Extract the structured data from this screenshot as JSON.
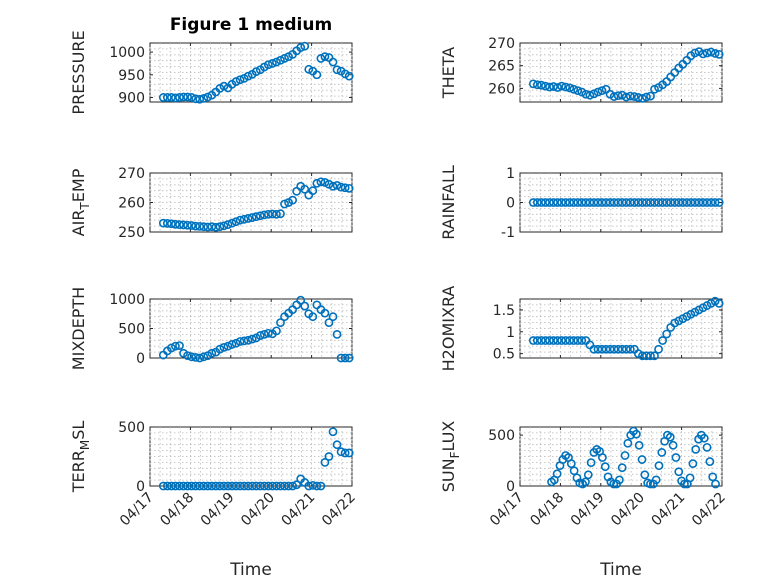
{
  "figure": {
    "title": "Figure 1 medium",
    "xlabel": "Time",
    "marker_color": "#0072BD"
  },
  "chart_data": [
    {
      "type": "scatter",
      "ylabel": "PRESSURE",
      "xlim": [
        "04/17",
        "04/22"
      ],
      "xticks": [
        "04/17",
        "04/18",
        "04/19",
        "04/20",
        "04/21",
        "04/22"
      ],
      "ylim": [
        890,
        1020
      ],
      "yticks": [
        900,
        950,
        1000
      ],
      "series": [
        {
          "x": [
            17.33,
            17.43,
            17.53,
            17.63,
            17.73,
            17.83,
            17.93,
            18.03,
            18.13,
            18.23,
            18.33,
            18.43,
            18.53,
            18.63,
            18.73,
            18.83,
            18.93,
            19.03,
            19.13,
            19.23,
            19.33,
            19.43,
            19.53,
            19.63,
            19.73,
            19.83,
            19.93,
            20.03,
            20.13,
            20.23,
            20.33,
            20.43,
            20.53,
            20.63,
            20.73,
            20.83,
            20.93,
            21.03,
            21.13,
            21.23,
            21.33,
            21.43,
            21.53,
            21.63,
            21.73,
            21.83,
            21.93
          ],
          "y": [
            900,
            900,
            900,
            899,
            900,
            901,
            901,
            900,
            897,
            896,
            898,
            901,
            905,
            912,
            920,
            925,
            921,
            929,
            935,
            939,
            942,
            947,
            951,
            957,
            961,
            967,
            972,
            975,
            978,
            982,
            986,
            990,
            995,
            1003,
            1010,
            1013,
            962,
            958,
            950,
            986,
            990,
            988,
            978,
            961,
            958,
            952,
            947
          ]
        }
      ]
    },
    {
      "type": "scatter",
      "ylabel": "THETA",
      "xlim": [
        "04/17",
        "04/22"
      ],
      "xticks": [
        "04/17",
        "04/18",
        "04/19",
        "04/20",
        "04/21",
        "04/22"
      ],
      "ylim": [
        257,
        270
      ],
      "yticks": [
        260,
        265,
        270
      ],
      "series": [
        {
          "x": [
            17.33,
            17.43,
            17.53,
            17.63,
            17.73,
            17.83,
            17.93,
            18.03,
            18.13,
            18.23,
            18.33,
            18.43,
            18.53,
            18.63,
            18.73,
            18.83,
            18.93,
            19.03,
            19.13,
            19.23,
            19.33,
            19.43,
            19.53,
            19.63,
            19.73,
            19.83,
            19.93,
            20.03,
            20.13,
            20.23,
            20.33,
            20.43,
            20.53,
            20.63,
            20.73,
            20.83,
            20.93,
            21.03,
            21.13,
            21.23,
            21.33,
            21.43,
            21.53,
            21.63,
            21.73,
            21.83,
            21.93
          ],
          "y": [
            261,
            260.8,
            260.7,
            260.5,
            260.3,
            260.4,
            260.2,
            260.5,
            260.3,
            260.1,
            259.8,
            259.5,
            259.2,
            258.7,
            258.5,
            258.8,
            259.2,
            259.5,
            259.8,
            258.7,
            258.2,
            258.4,
            258.5,
            258.1,
            258.3,
            258.2,
            258,
            257.8,
            258.1,
            258.3,
            259.8,
            260.2,
            260.8,
            261.5,
            262.5,
            263.5,
            264.5,
            265.3,
            266.2,
            267.2,
            267.8,
            268.1,
            267.6,
            267.8,
            268,
            267.7,
            267.5
          ]
        }
      ]
    },
    {
      "type": "scatter",
      "ylabel": "AIR_TEMP",
      "ylabel_display": [
        "AIR",
        "T",
        "EMP"
      ],
      "xlim": [
        "04/17",
        "04/22"
      ],
      "xticks": [
        "04/17",
        "04/18",
        "04/19",
        "04/20",
        "04/21",
        "04/22"
      ],
      "ylim": [
        250,
        270
      ],
      "yticks": [
        250,
        260,
        270
      ],
      "series": [
        {
          "x": [
            17.33,
            17.43,
            17.53,
            17.63,
            17.73,
            17.83,
            17.93,
            18.03,
            18.13,
            18.23,
            18.33,
            18.43,
            18.53,
            18.63,
            18.73,
            18.83,
            18.93,
            19.03,
            19.13,
            19.23,
            19.33,
            19.43,
            19.53,
            19.63,
            19.73,
            19.83,
            19.93,
            20.03,
            20.13,
            20.23,
            20.33,
            20.43,
            20.53,
            20.63,
            20.73,
            20.83,
            20.93,
            21.03,
            21.13,
            21.23,
            21.33,
            21.43,
            21.53,
            21.63,
            21.73,
            21.83,
            21.93
          ],
          "y": [
            253,
            252.9,
            252.8,
            252.6,
            252.5,
            252.4,
            252.3,
            252.2,
            252,
            251.9,
            251.8,
            251.7,
            251.8,
            251.6,
            251.8,
            252.1,
            252.5,
            253,
            253.5,
            254,
            254.3,
            254.6,
            254.9,
            255.2,
            255.5,
            255.8,
            256,
            256.1,
            256,
            256.2,
            259.5,
            260,
            260.8,
            263.8,
            265.5,
            264.5,
            262.5,
            264,
            266.5,
            267,
            266.8,
            266.2,
            265.5,
            265.8,
            265.2,
            265,
            264.8
          ]
        }
      ]
    },
    {
      "type": "scatter",
      "ylabel": "RAINFALL",
      "xlim": [
        "04/17",
        "04/22"
      ],
      "xticks": [
        "04/17",
        "04/18",
        "04/19",
        "04/20",
        "04/21",
        "04/22"
      ],
      "ylim": [
        -1,
        1
      ],
      "yticks": [
        -1,
        0,
        1
      ],
      "series": [
        {
          "x": [
            17.33,
            17.43,
            17.53,
            17.63,
            17.73,
            17.83,
            17.93,
            18.03,
            18.13,
            18.23,
            18.33,
            18.43,
            18.53,
            18.63,
            18.73,
            18.83,
            18.93,
            19.03,
            19.13,
            19.23,
            19.33,
            19.43,
            19.53,
            19.63,
            19.73,
            19.83,
            19.93,
            20.03,
            20.13,
            20.23,
            20.33,
            20.43,
            20.53,
            20.63,
            20.73,
            20.83,
            20.93,
            21.03,
            21.13,
            21.23,
            21.33,
            21.43,
            21.53,
            21.63,
            21.73,
            21.83,
            21.93
          ],
          "y": [
            0,
            0,
            0,
            0,
            0,
            0,
            0,
            0,
            0,
            0,
            0,
            0,
            0,
            0,
            0,
            0,
            0,
            0,
            0,
            0,
            0,
            0,
            0,
            0,
            0,
            0,
            0,
            0,
            0,
            0,
            0,
            0,
            0,
            0,
            0,
            0,
            0,
            0,
            0,
            0,
            0,
            0,
            0,
            0,
            0,
            0,
            0
          ]
        }
      ]
    },
    {
      "type": "scatter",
      "ylabel": "MIXDEPTH",
      "xlim": [
        "04/17",
        "04/22"
      ],
      "xticks": [
        "04/17",
        "04/18",
        "04/19",
        "04/20",
        "04/21",
        "04/22"
      ],
      "ylim": [
        0,
        1000
      ],
      "yticks": [
        0,
        500,
        1000
      ],
      "series": [
        {
          "x": [
            17.33,
            17.43,
            17.53,
            17.63,
            17.73,
            17.83,
            17.93,
            18.03,
            18.13,
            18.23,
            18.33,
            18.43,
            18.53,
            18.63,
            18.73,
            18.83,
            18.93,
            19.03,
            19.13,
            19.23,
            19.33,
            19.43,
            19.53,
            19.63,
            19.73,
            19.83,
            19.93,
            20.03,
            20.13,
            20.23,
            20.33,
            20.43,
            20.53,
            20.63,
            20.73,
            20.83,
            20.93,
            21.03,
            21.13,
            21.23,
            21.33,
            21.43,
            21.53,
            21.63,
            21.73,
            21.83,
            21.93
          ],
          "y": [
            50,
            120,
            170,
            200,
            210,
            80,
            40,
            20,
            10,
            0,
            20,
            40,
            80,
            100,
            150,
            180,
            200,
            230,
            250,
            280,
            290,
            300,
            320,
            340,
            380,
            400,
            420,
            410,
            460,
            600,
            700,
            760,
            820,
            900,
            980,
            880,
            750,
            700,
            900,
            820,
            760,
            600,
            700,
            400,
            0,
            0,
            0
          ]
        }
      ]
    },
    {
      "type": "scatter",
      "ylabel": "H2OMIXRA",
      "xlim": [
        "04/17",
        "04/22"
      ],
      "xticks": [
        "04/17",
        "04/18",
        "04/19",
        "04/20",
        "04/21",
        "04/22"
      ],
      "ylim": [
        0.4,
        1.75
      ],
      "yticks": [
        0.5,
        1,
        1.5
      ],
      "series": [
        {
          "x": [
            17.33,
            17.43,
            17.53,
            17.63,
            17.73,
            17.83,
            17.93,
            18.03,
            18.13,
            18.23,
            18.33,
            18.43,
            18.53,
            18.63,
            18.73,
            18.83,
            18.93,
            19.03,
            19.13,
            19.23,
            19.33,
            19.43,
            19.53,
            19.63,
            19.73,
            19.83,
            19.93,
            20.03,
            20.13,
            20.23,
            20.33,
            20.43,
            20.53,
            20.63,
            20.73,
            20.83,
            20.93,
            21.03,
            21.13,
            21.23,
            21.33,
            21.43,
            21.53,
            21.63,
            21.73,
            21.83,
            21.93
          ],
          "y": [
            0.8,
            0.8,
            0.8,
            0.8,
            0.8,
            0.8,
            0.8,
            0.8,
            0.8,
            0.8,
            0.8,
            0.8,
            0.8,
            0.8,
            0.7,
            0.6,
            0.6,
            0.6,
            0.6,
            0.6,
            0.6,
            0.6,
            0.6,
            0.6,
            0.6,
            0.6,
            0.5,
            0.45,
            0.45,
            0.45,
            0.45,
            0.6,
            0.8,
            0.95,
            1.1,
            1.2,
            1.25,
            1.3,
            1.35,
            1.4,
            1.45,
            1.5,
            1.55,
            1.6,
            1.65,
            1.7,
            1.65
          ]
        }
      ]
    },
    {
      "type": "scatter",
      "ylabel": "TERR_MSL",
      "ylabel_display": [
        "TERR",
        "M",
        "SL"
      ],
      "xlim": [
        "04/17",
        "04/22"
      ],
      "xticks": [
        "04/17",
        "04/18",
        "04/19",
        "04/20",
        "04/21",
        "04/22"
      ],
      "ylim": [
        0,
        500
      ],
      "yticks": [
        0,
        500
      ],
      "series": [
        {
          "x": [
            17.33,
            17.43,
            17.53,
            17.63,
            17.73,
            17.83,
            17.93,
            18.03,
            18.13,
            18.23,
            18.33,
            18.43,
            18.53,
            18.63,
            18.73,
            18.83,
            18.93,
            19.03,
            19.13,
            19.23,
            19.33,
            19.43,
            19.53,
            19.63,
            19.73,
            19.83,
            19.93,
            20.03,
            20.13,
            20.23,
            20.33,
            20.43,
            20.53,
            20.63,
            20.73,
            20.83,
            20.93,
            21.03,
            21.13,
            21.23,
            21.33,
            21.43,
            21.53,
            21.63,
            21.73,
            21.83,
            21.93
          ],
          "y": [
            0,
            0,
            0,
            0,
            0,
            0,
            0,
            0,
            0,
            0,
            0,
            0,
            0,
            0,
            0,
            0,
            0,
            0,
            0,
            0,
            0,
            0,
            0,
            0,
            0,
            0,
            0,
            0,
            0,
            0,
            0,
            0,
            0,
            10,
            60,
            30,
            0,
            5,
            0,
            0,
            200,
            250,
            460,
            350,
            290,
            280,
            280
          ]
        }
      ]
    },
    {
      "type": "scatter",
      "ylabel": "SUN_FLUX",
      "ylabel_display": [
        "SUN",
        "F",
        "LUX"
      ],
      "xlim": [
        "04/17",
        "04/22"
      ],
      "xticks": [
        "04/17",
        "04/18",
        "04/19",
        "04/20",
        "04/21",
        "04/22"
      ],
      "ylim": [
        0,
        580
      ],
      "yticks": [
        0,
        500
      ],
      "series": [
        {
          "x": [
            17.78,
            17.85,
            17.92,
            17.99,
            18.06,
            18.13,
            18.2,
            18.27,
            18.34,
            18.41,
            18.48,
            18.55,
            18.62,
            18.69,
            18.76,
            18.83,
            18.9,
            18.97,
            19.04,
            19.11,
            19.18,
            19.25,
            19.32,
            19.39,
            19.46,
            19.53,
            19.6,
            19.67,
            19.74,
            19.81,
            19.88,
            19.95,
            20.02,
            20.09,
            20.16,
            20.23,
            20.3,
            20.37,
            20.44,
            20.51,
            20.58,
            20.65,
            20.72,
            20.79,
            20.86,
            20.93,
            21.0,
            21.07,
            21.14,
            21.21,
            21.28,
            21.35,
            21.42,
            21.49,
            21.56,
            21.63,
            21.7,
            21.77,
            21.84
          ],
          "y": [
            40,
            60,
            120,
            200,
            260,
            300,
            280,
            220,
            150,
            80,
            30,
            20,
            40,
            110,
            230,
            330,
            360,
            340,
            280,
            190,
            90,
            40,
            20,
            20,
            60,
            180,
            300,
            420,
            500,
            540,
            510,
            400,
            260,
            110,
            30,
            20,
            20,
            60,
            200,
            330,
            440,
            500,
            480,
            400,
            280,
            140,
            50,
            20,
            20,
            80,
            220,
            360,
            460,
            500,
            470,
            380,
            240,
            90,
            20
          ]
        }
      ]
    }
  ]
}
